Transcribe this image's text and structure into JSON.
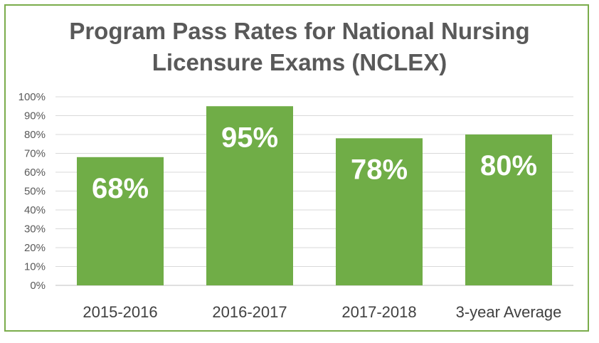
{
  "chart_data": {
    "type": "bar",
    "title_lines": [
      "Program Pass Rates for National Nursing",
      "Licensure Exams (NCLEX)"
    ],
    "categories": [
      "2015-2016",
      "2016-2017",
      "2017-2018",
      "3-year Average"
    ],
    "values": [
      68,
      95,
      78,
      80
    ],
    "data_labels": [
      "68%",
      "95%",
      "78%",
      "80%"
    ],
    "y_ticks": [
      0,
      10,
      20,
      30,
      40,
      50,
      60,
      70,
      80,
      90,
      100
    ],
    "y_tick_labels": [
      "0%",
      "10%",
      "20%",
      "30%",
      "40%",
      "50%",
      "60%",
      "70%",
      "80%",
      "90%",
      "100%"
    ],
    "ylim": [
      0,
      100
    ],
    "grid": true,
    "bar_color": "#70ad47",
    "border_color": "#7aac4b"
  }
}
